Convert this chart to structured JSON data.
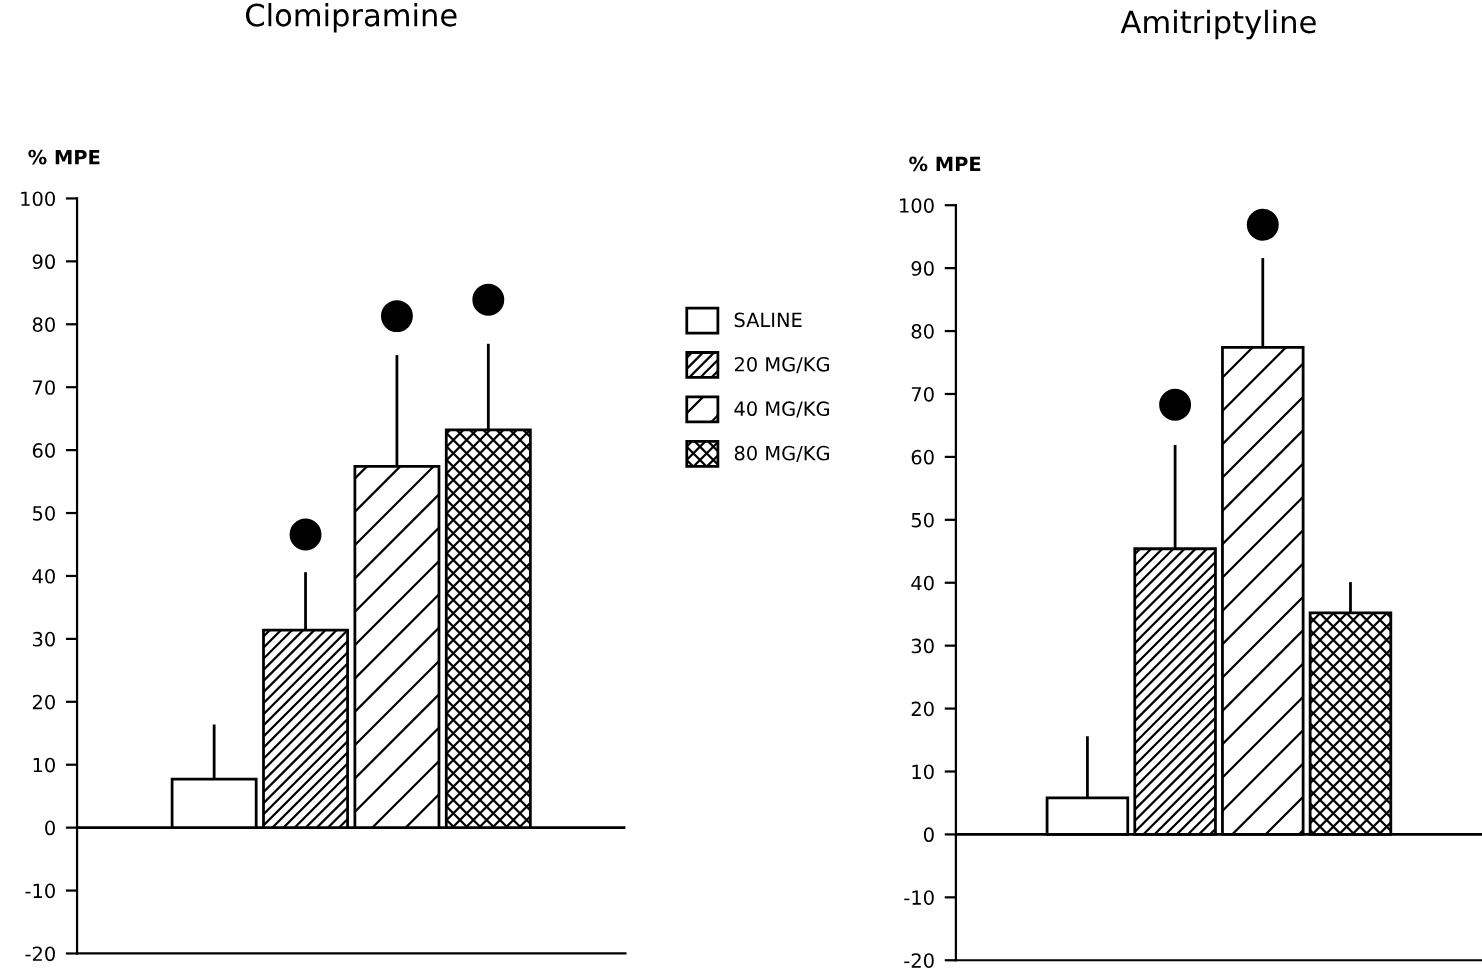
{
  "chart_data": [
    {
      "type": "bar",
      "title": "Clomipramine",
      "ylabel": "% MPE",
      "categories": [
        null,
        null,
        null,
        null,
        null,
        null
      ],
      "series": [
        {
          "name": "SALINE",
          "color": "#ffffff",
          "values": [
            null,
            7.7,
            null,
            null,
            null,
            null
          ],
          "errors": [
            null,
            [
              7.7,
              16.4
            ],
            null,
            null,
            null,
            null
          ]
        },
        {
          "name": "20 MG/KG",
          "color": "#000000",
          "values": [
            null,
            null,
            31.4,
            null,
            null,
            null
          ],
          "errors": [
            null,
            null,
            [
              31.4,
              40.6
            ],
            null,
            null,
            null
          ]
        },
        {
          "name": "40 MG/KG",
          "color": "#000000",
          "values": [
            null,
            null,
            null,
            57.4,
            null,
            null
          ],
          "errors": [
            null,
            null,
            null,
            [
              57.4,
              75.1
            ],
            null,
            null
          ]
        },
        {
          "name": "80 MG/KG",
          "color": "#000000",
          "values": [
            null,
            null,
            null,
            null,
            63.2,
            null
          ],
          "errors": [
            null,
            null,
            null,
            null,
            [
              63.2,
              76.9
            ],
            null
          ]
        },
        {
          "type": "scatter",
          "color": "#000000",
          "marker": "circle",
          "values": [
            null,
            null,
            46.6,
            81.3,
            83.9,
            null
          ]
        }
      ],
      "ylim": [
        -20,
        100
      ],
      "yticks": [
        -20,
        -10,
        0,
        10,
        20,
        30,
        40,
        50,
        60,
        70,
        80,
        90,
        100
      ],
      "ref_lines": [
        {
          "axis": "y",
          "value": 0
        }
      ],
      "legend": "right",
      "grid": false,
      "stacked": true
    },
    {
      "type": "bar",
      "title": "Amitriptyline",
      "ylabel": "% MPE",
      "categories": [
        null,
        null,
        null,
        null,
        null,
        null
      ],
      "series": [
        {
          "color": "#ffffff",
          "values": [
            null,
            5.8,
            null,
            null,
            null,
            null
          ],
          "errors": [
            null,
            [
              5.8,
              15.6
            ],
            null,
            null,
            null,
            null
          ]
        },
        {
          "color": "#000000",
          "values": [
            null,
            null,
            45.4,
            null,
            null,
            null
          ],
          "errors": [
            null,
            null,
            [
              45.4,
              61.9
            ],
            null,
            null,
            null
          ]
        },
        {
          "color": "#000000",
          "values": [
            null,
            null,
            null,
            77.4,
            null,
            null
          ],
          "errors": [
            null,
            null,
            null,
            [
              77.4,
              91.6
            ],
            null,
            null
          ]
        },
        {
          "color": "#000000",
          "values": [
            null,
            null,
            null,
            null,
            35.2,
            null
          ],
          "errors": [
            null,
            null,
            null,
            null,
            [
              35.2,
              40.1
            ],
            null
          ]
        },
        {
          "type": "scatter",
          "color": "#000000",
          "marker": "circle",
          "values": [
            null,
            null,
            68.3,
            96.9,
            null,
            null
          ]
        }
      ],
      "ylim": [
        -20,
        100
      ],
      "yticks": [
        -20,
        -10,
        0,
        10,
        20,
        30,
        40,
        50,
        60,
        70,
        80,
        90,
        100
      ],
      "ref_lines": [
        {
          "axis": "y",
          "value": 0
        }
      ],
      "grid": false,
      "stacked": true
    }
  ]
}
